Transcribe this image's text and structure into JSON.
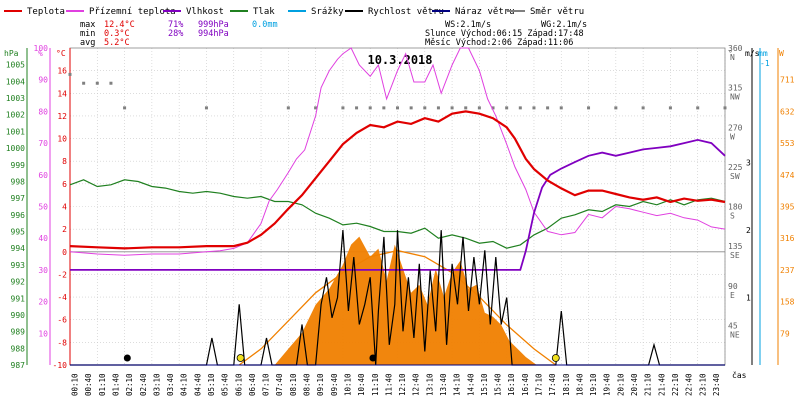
{
  "chart_data": {
    "type": "line",
    "title": "10.3.2018",
    "legend": [
      {
        "name": "Teplota",
        "color": "#e00000"
      },
      {
        "name": "Přízemní teplota",
        "color": "#e040e0"
      },
      {
        "name": "Vlhkost",
        "color": "#8000c0"
      },
      {
        "name": "Tlak",
        "color": "#208020"
      },
      {
        "name": "Srážky",
        "color": "#00a0e0"
      },
      {
        "name": "Rychlost větru",
        "color": "#000000"
      },
      {
        "name": "Náraz větru",
        "color": "#000080"
      },
      {
        "name": "Směr větru",
        "color": "#808080"
      }
    ],
    "stats": {
      "max_label": "max",
      "max_temp": "12.4°C",
      "max_hum": "71%",
      "max_press": "999hPa",
      "max_rain": "0.0mm",
      "min_label": "min",
      "min_temp": "0.3°C",
      "min_hum": "28%",
      "min_press": "994hPa",
      "avg_label": "avg",
      "avg_temp": "5.2°C"
    },
    "info": {
      "ws": "WS:2.1m/s",
      "wg": "WG:2.1m/s",
      "sun": "Slunce Východ:06:15  Západ:17:48",
      "moon": "Měsíc  Východ:2:06   Západ:11:06"
    },
    "axis_units": {
      "press": "hPa",
      "hum": "%",
      "temp": "°C",
      "dir": "°",
      "wind": "m/s",
      "rain": "mm",
      "solar": "W",
      "x": "čas"
    },
    "axes": {
      "press": {
        "min": 987,
        "max": 1006
      },
      "hum": {
        "min": 0,
        "max": 100
      },
      "temp": {
        "min": -10,
        "max": 18
      },
      "dir": {
        "min": 0,
        "max": 360
      },
      "wind": {
        "min": 0,
        "max": 4.7
      },
      "solar": {
        "min": 0,
        "max": 790
      }
    },
    "ticks": {
      "press": [
        "987",
        "988",
        "989",
        "990",
        "991",
        "992",
        "993",
        "994",
        "995",
        "996",
        "997",
        "998",
        "999",
        "1000",
        "1001",
        "1002",
        "1003",
        "1004",
        "1005"
      ],
      "hum": [
        "10",
        "20",
        "30",
        "40",
        "50",
        "60",
        "70",
        "80",
        "90",
        "100"
      ],
      "temp": [
        "-10",
        "-8",
        "-6",
        "-4",
        "-2",
        "0",
        "2",
        "4",
        "6",
        "8",
        "10",
        "12",
        "14",
        "16"
      ],
      "dir": [
        {
          "deg": "45",
          "name": "NE"
        },
        {
          "deg": "90",
          "name": "E"
        },
        {
          "deg": "135",
          "name": "SE"
        },
        {
          "deg": "180",
          "name": "S"
        },
        {
          "deg": "225",
          "name": "SW"
        },
        {
          "deg": "270",
          "name": "W"
        },
        {
          "deg": "315",
          "name": "NW"
        },
        {
          "deg": "360",
          "name": "N"
        }
      ],
      "wind": [
        {
          "v": 1,
          "t": "1"
        },
        {
          "v": 2,
          "t": "2"
        },
        {
          "v": 3,
          "t": "3"
        }
      ],
      "rain": [
        {
          "v": 1,
          "t": "-1"
        }
      ],
      "solar": [
        "79",
        "158",
        "237",
        "316",
        "395",
        "474",
        "553",
        "632",
        "711"
      ]
    },
    "x_labels": [
      "00:10",
      "00:40",
      "01:10",
      "01:40",
      "02:10",
      "02:40",
      "03:10",
      "03:40",
      "04:10",
      "04:40",
      "05:10",
      "05:40",
      "06:10",
      "06:40",
      "07:10",
      "07:40",
      "08:10",
      "08:40",
      "09:10",
      "09:40",
      "10:10",
      "10:40",
      "11:10",
      "11:40",
      "12:10",
      "12:40",
      "13:10",
      "13:40",
      "14:10",
      "14:40",
      "15:10",
      "15:40",
      "16:10",
      "16:40",
      "17:10",
      "17:40",
      "18:10",
      "18:40",
      "19:10",
      "19:40",
      "20:10",
      "20:40",
      "21:10",
      "21:40",
      "22:10",
      "22:40",
      "23:10",
      "23:40"
    ],
    "temperature": [
      [
        0,
        0.5
      ],
      [
        1,
        0.4
      ],
      [
        2,
        0.3
      ],
      [
        3,
        0.4
      ],
      [
        4,
        0.4
      ],
      [
        5,
        0.5
      ],
      [
        6,
        0.5
      ],
      [
        6.5,
        0.8
      ],
      [
        7,
        1.5
      ],
      [
        7.5,
        2.5
      ],
      [
        8,
        3.8
      ],
      [
        8.5,
        5.0
      ],
      [
        9,
        6.5
      ],
      [
        9.5,
        8.0
      ],
      [
        10,
        9.5
      ],
      [
        10.5,
        10.5
      ],
      [
        11,
        11.2
      ],
      [
        11.5,
        11.0
      ],
      [
        12,
        11.5
      ],
      [
        12.5,
        11.3
      ],
      [
        13,
        11.8
      ],
      [
        13.5,
        11.5
      ],
      [
        14,
        12.2
      ],
      [
        14.5,
        12.4
      ],
      [
        15,
        12.2
      ],
      [
        15.5,
        11.8
      ],
      [
        16,
        11.0
      ],
      [
        16.3,
        10.0
      ],
      [
        16.7,
        8.2
      ],
      [
        17,
        7.3
      ],
      [
        17.5,
        6.3
      ],
      [
        18,
        5.6
      ],
      [
        18.5,
        5.0
      ],
      [
        19,
        5.4
      ],
      [
        19.5,
        5.4
      ],
      [
        20,
        5.1
      ],
      [
        20.5,
        4.8
      ],
      [
        21,
        4.6
      ],
      [
        21.5,
        4.8
      ],
      [
        22,
        4.4
      ],
      [
        22.5,
        4.7
      ],
      [
        23,
        4.5
      ],
      [
        23.5,
        4.6
      ],
      [
        24,
        4.4
      ]
    ],
    "ground_temperature": [
      [
        0,
        0.0
      ],
      [
        1,
        -0.2
      ],
      [
        2,
        -0.3
      ],
      [
        3,
        -0.2
      ],
      [
        4,
        -0.2
      ],
      [
        5,
        0.0
      ],
      [
        5.5,
        0.1
      ],
      [
        6,
        0.3
      ],
      [
        6.5,
        0.8
      ],
      [
        7,
        2.5
      ],
      [
        7.3,
        4.5
      ],
      [
        7.6,
        5.5
      ],
      [
        8,
        7.0
      ],
      [
        8.3,
        8.2
      ],
      [
        8.6,
        9.0
      ],
      [
        9,
        12.0
      ],
      [
        9.2,
        14.5
      ],
      [
        9.5,
        16.0
      ],
      [
        9.8,
        17.0
      ],
      [
        10,
        17.5
      ],
      [
        10.3,
        18.0
      ],
      [
        10.6,
        16.5
      ],
      [
        11,
        15.5
      ],
      [
        11.3,
        16.5
      ],
      [
        11.6,
        13.5
      ],
      [
        12,
        16.0
      ],
      [
        12.3,
        17.5
      ],
      [
        12.6,
        15.0
      ],
      [
        13,
        15.0
      ],
      [
        13.3,
        16.5
      ],
      [
        13.6,
        14.0
      ],
      [
        14,
        16.5
      ],
      [
        14.3,
        18.0
      ],
      [
        14.6,
        18.0
      ],
      [
        15,
        16.0
      ],
      [
        15.3,
        13.5
      ],
      [
        15.6,
        12.0
      ],
      [
        16,
        9.5
      ],
      [
        16.3,
        7.5
      ],
      [
        16.7,
        5.5
      ],
      [
        17,
        3.5
      ],
      [
        17.5,
        1.8
      ],
      [
        18,
        1.5
      ],
      [
        18.5,
        1.7
      ],
      [
        19,
        3.3
      ],
      [
        19.5,
        3.0
      ],
      [
        20,
        4.0
      ],
      [
        20.5,
        3.8
      ],
      [
        21,
        3.5
      ],
      [
        21.5,
        3.2
      ],
      [
        22,
        3.4
      ],
      [
        22.5,
        3.0
      ],
      [
        23,
        2.8
      ],
      [
        23.5,
        2.2
      ],
      [
        24,
        2.0
      ]
    ],
    "humidity": [
      [
        0,
        30
      ],
      [
        16.5,
        30
      ],
      [
        16.7,
        36
      ],
      [
        17,
        48
      ],
      [
        17.3,
        56
      ],
      [
        17.6,
        60
      ],
      [
        18,
        62
      ],
      [
        18.5,
        64
      ],
      [
        19,
        66
      ],
      [
        19.5,
        67
      ],
      [
        20,
        66
      ],
      [
        20.5,
        67
      ],
      [
        21,
        68
      ],
      [
        21.5,
        68.5
      ],
      [
        22,
        69
      ],
      [
        22.5,
        70
      ],
      [
        23,
        71
      ],
      [
        23.5,
        70
      ],
      [
        24,
        66
      ]
    ],
    "pressure": [
      [
        0,
        997.8
      ],
      [
        0.5,
        998.1
      ],
      [
        1,
        997.7
      ],
      [
        1.5,
        997.8
      ],
      [
        2,
        998.1
      ],
      [
        2.5,
        998.0
      ],
      [
        3,
        997.7
      ],
      [
        3.5,
        997.6
      ],
      [
        4,
        997.4
      ],
      [
        4.5,
        997.3
      ],
      [
        5,
        997.4
      ],
      [
        5.5,
        997.3
      ],
      [
        6,
        997.1
      ],
      [
        6.5,
        997.0
      ],
      [
        7,
        997.1
      ],
      [
        7.5,
        996.8
      ],
      [
        8,
        996.8
      ],
      [
        8.5,
        996.6
      ],
      [
        9,
        996.1
      ],
      [
        9.5,
        995.8
      ],
      [
        10,
        995.4
      ],
      [
        10.5,
        995.5
      ],
      [
        11,
        995.3
      ],
      [
        11.5,
        995.0
      ],
      [
        12,
        995.0
      ],
      [
        12.5,
        994.9
      ],
      [
        13,
        995.2
      ],
      [
        13.5,
        994.6
      ],
      [
        14,
        994.8
      ],
      [
        14.5,
        994.6
      ],
      [
        15,
        994.3
      ],
      [
        15.5,
        994.4
      ],
      [
        16,
        994.0
      ],
      [
        16.5,
        994.2
      ],
      [
        17,
        994.8
      ],
      [
        17.5,
        995.2
      ],
      [
        18,
        995.8
      ],
      [
        18.5,
        996.0
      ],
      [
        19,
        996.3
      ],
      [
        19.5,
        996.2
      ],
      [
        20,
        996.6
      ],
      [
        20.5,
        996.5
      ],
      [
        21,
        996.8
      ],
      [
        21.5,
        996.6
      ],
      [
        22,
        996.9
      ],
      [
        22.5,
        996.6
      ],
      [
        23,
        996.9
      ],
      [
        23.5,
        997.0
      ],
      [
        24,
        996.8
      ]
    ],
    "wind_speed": [
      [
        0,
        0
      ],
      [
        5,
        0
      ],
      [
        5.2,
        0.4
      ],
      [
        5.4,
        0
      ],
      [
        6,
        0
      ],
      [
        6.2,
        0.9
      ],
      [
        6.4,
        0
      ],
      [
        7,
        0
      ],
      [
        7.2,
        0.4
      ],
      [
        7.4,
        0
      ],
      [
        8.3,
        0
      ],
      [
        8.5,
        0.6
      ],
      [
        8.7,
        0
      ],
      [
        9,
        0
      ],
      [
        9.2,
        0.9
      ],
      [
        9.4,
        1.3
      ],
      [
        9.6,
        0.7
      ],
      [
        9.8,
        1.0
      ],
      [
        10,
        2.0
      ],
      [
        10.2,
        0.8
      ],
      [
        10.4,
        1.6
      ],
      [
        10.6,
        0.6
      ],
      [
        10.8,
        0.9
      ],
      [
        11,
        1.3
      ],
      [
        11.2,
        0
      ],
      [
        11.3,
        0.8
      ],
      [
        11.5,
        1.9
      ],
      [
        11.7,
        0.3
      ],
      [
        11.9,
        0.9
      ],
      [
        12,
        2.0
      ],
      [
        12.2,
        0.5
      ],
      [
        12.4,
        1.3
      ],
      [
        12.6,
        0.4
      ],
      [
        12.8,
        1.5
      ],
      [
        13,
        0.2
      ],
      [
        13.2,
        1.4
      ],
      [
        13.4,
        0.5
      ],
      [
        13.6,
        2.0
      ],
      [
        13.8,
        0.3
      ],
      [
        14,
        1.5
      ],
      [
        14.2,
        0.9
      ],
      [
        14.4,
        1.9
      ],
      [
        14.6,
        0.8
      ],
      [
        14.8,
        1.6
      ],
      [
        15,
        0.9
      ],
      [
        15.2,
        1.7
      ],
      [
        15.4,
        0.6
      ],
      [
        15.6,
        1.6
      ],
      [
        15.8,
        0.6
      ],
      [
        16,
        1.0
      ],
      [
        16.2,
        0
      ],
      [
        17.8,
        0
      ],
      [
        18,
        0.8
      ],
      [
        18.2,
        0
      ],
      [
        21.2,
        0
      ],
      [
        21.4,
        0.3
      ],
      [
        21.6,
        0
      ],
      [
        24,
        0
      ]
    ],
    "wind_gust": [
      [
        0,
        0
      ],
      [
        24,
        0
      ]
    ],
    "wind_direction": [
      [
        0,
        330
      ],
      [
        0.5,
        320
      ],
      [
        1,
        320
      ],
      [
        1.5,
        320
      ],
      [
        2,
        292
      ],
      [
        5,
        292
      ],
      [
        8,
        292
      ],
      [
        9,
        292
      ],
      [
        10,
        292
      ],
      [
        10.5,
        292
      ],
      [
        11,
        292
      ],
      [
        11.5,
        292
      ],
      [
        12,
        292
      ],
      [
        12.5,
        292
      ],
      [
        13,
        292
      ],
      [
        13.5,
        292
      ],
      [
        14,
        292
      ],
      [
        14.5,
        292
      ],
      [
        15,
        292
      ],
      [
        15.5,
        292
      ],
      [
        16,
        292
      ],
      [
        16.5,
        292
      ],
      [
        17,
        292
      ],
      [
        17.5,
        292
      ],
      [
        18,
        292
      ],
      [
        19,
        292
      ],
      [
        20,
        292
      ],
      [
        21,
        292
      ],
      [
        22,
        292
      ],
      [
        23,
        292
      ],
      [
        24,
        292
      ]
    ],
    "solar": [
      [
        6.2,
        0
      ],
      [
        7,
        40
      ],
      [
        8,
        110
      ],
      [
        9,
        180
      ],
      [
        10,
        230
      ],
      [
        11,
        270
      ],
      [
        12,
        285
      ],
      [
        13,
        270
      ],
      [
        14,
        230
      ],
      [
        15,
        170
      ],
      [
        16,
        100
      ],
      [
        17,
        40
      ],
      [
        17.8,
        0
      ]
    ],
    "solar_measured": [
      [
        7.5,
        0
      ],
      [
        8,
        40
      ],
      [
        8.5,
        80
      ],
      [
        9,
        150
      ],
      [
        9.5,
        190
      ],
      [
        10,
        250
      ],
      [
        10.3,
        300
      ],
      [
        10.6,
        320
      ],
      [
        11,
        270
      ],
      [
        11.3,
        290
      ],
      [
        11.6,
        210
      ],
      [
        11.9,
        300
      ],
      [
        12.2,
        240
      ],
      [
        12.5,
        180
      ],
      [
        12.8,
        200
      ],
      [
        13.1,
        150
      ],
      [
        13.4,
        240
      ],
      [
        13.7,
        170
      ],
      [
        14,
        230
      ],
      [
        14.3,
        260
      ],
      [
        14.6,
        190
      ],
      [
        14.9,
        200
      ],
      [
        15.2,
        130
      ],
      [
        15.5,
        120
      ],
      [
        15.8,
        100
      ],
      [
        16.1,
        60
      ],
      [
        16.4,
        40
      ],
      [
        16.7,
        20
      ],
      [
        17.1,
        0
      ]
    ],
    "markers": {
      "sunrise_h": 6.25,
      "sunset_h": 17.8,
      "moonrise_h": 2.1,
      "moonset_h": 11.1
    }
  }
}
